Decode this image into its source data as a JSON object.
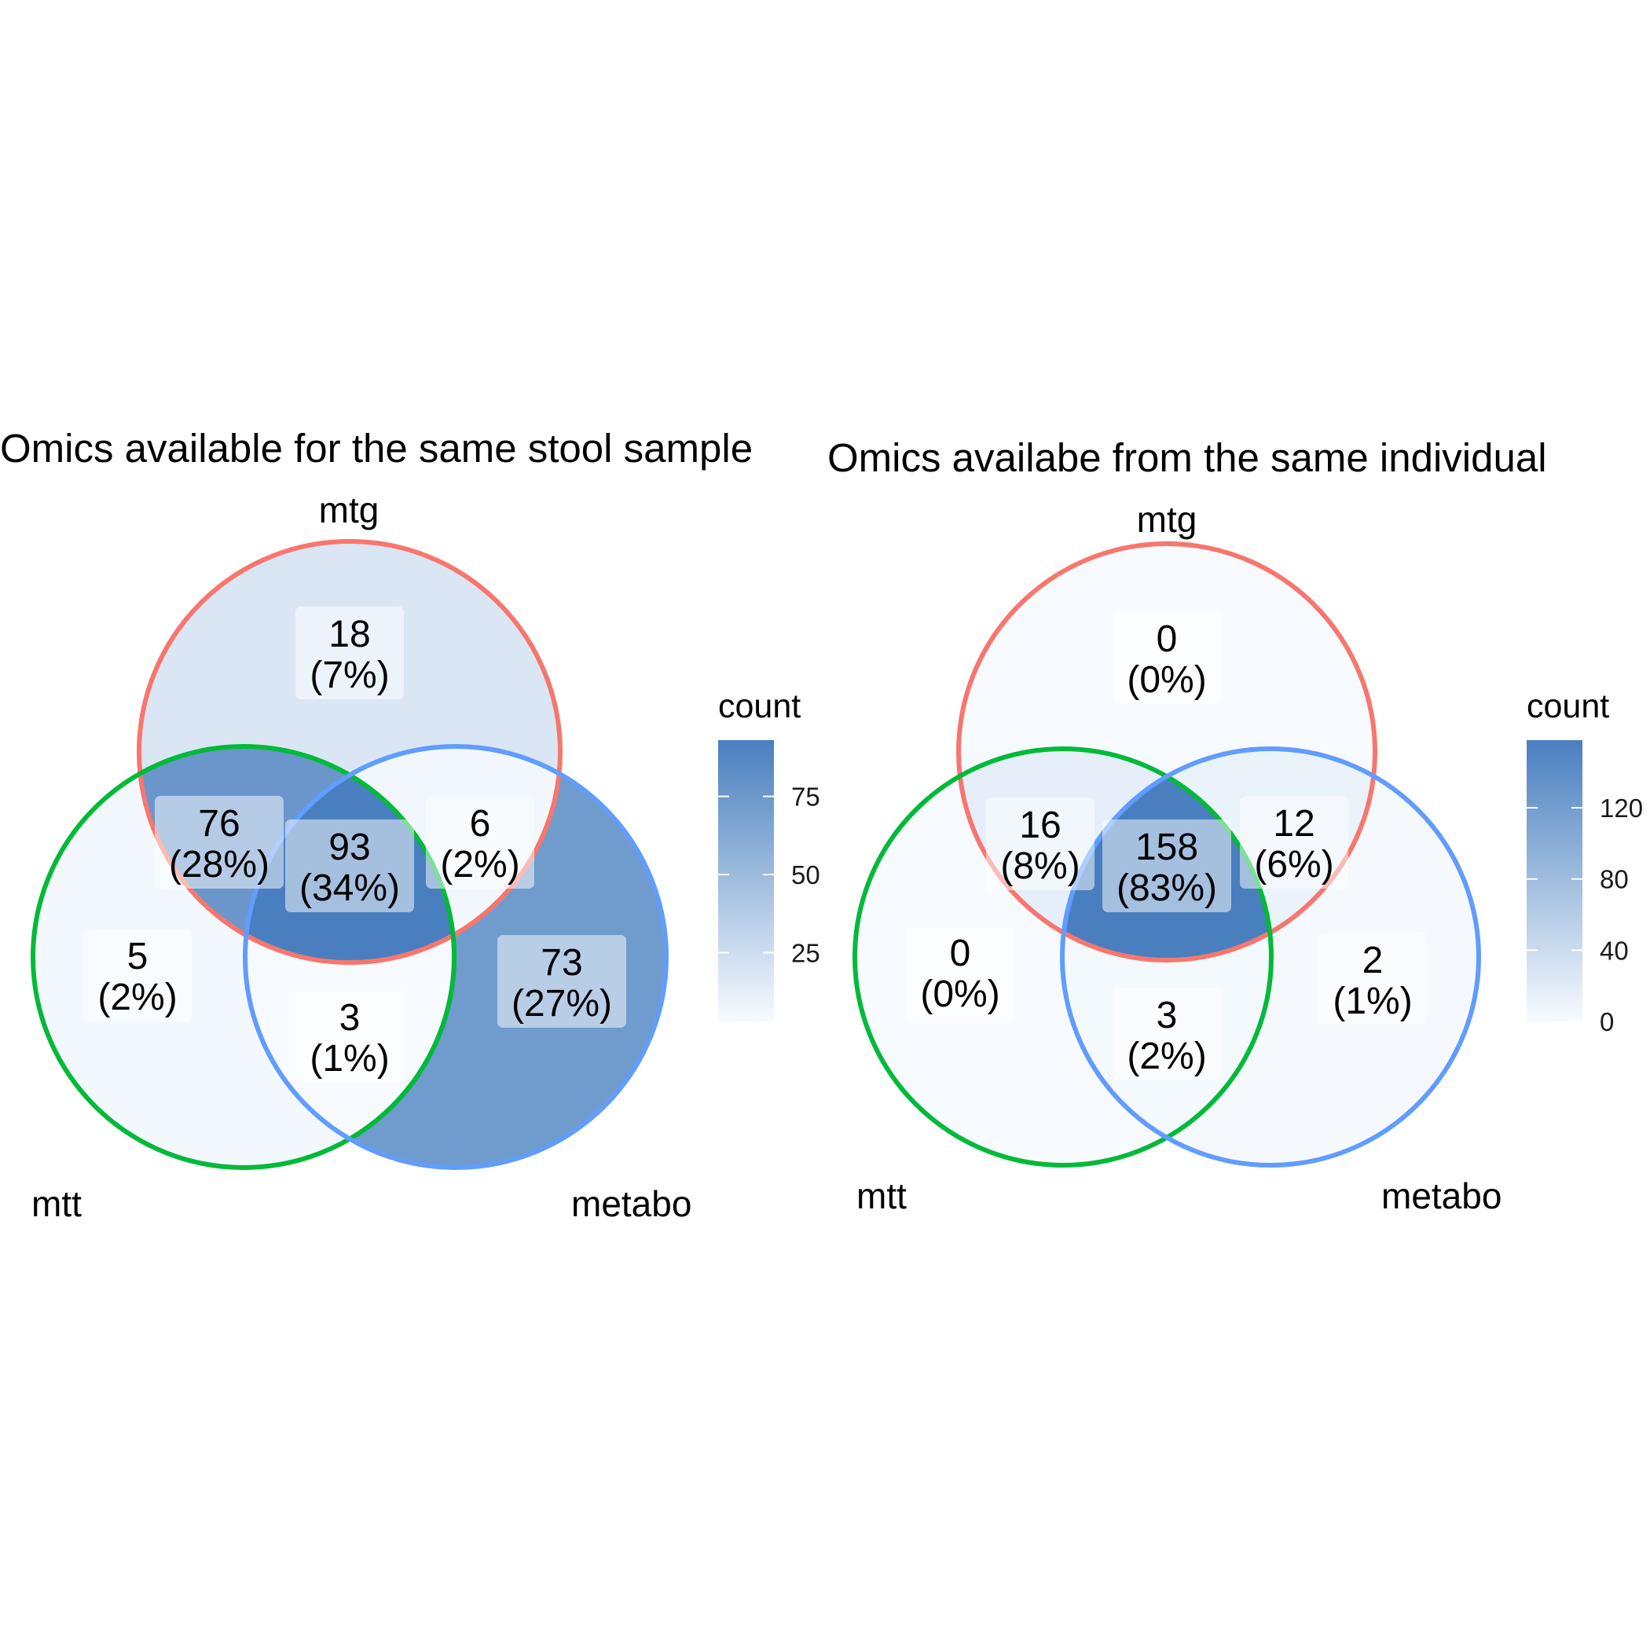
{
  "chart_data": [
    {
      "type": "venn",
      "title": "Omics available for the same stool sample",
      "sets": [
        "mtg",
        "mtt",
        "metabo"
      ],
      "set_colors": {
        "mtg": "#F8766D",
        "mtt": "#00BA38",
        "metabo": "#619CFF"
      },
      "regions": [
        {
          "sets": [
            "mtg"
          ],
          "count": "18",
          "percent": "(7%)"
        },
        {
          "sets": [
            "mtg",
            "mtt"
          ],
          "count": "76",
          "percent": "(28%)"
        },
        {
          "sets": [
            "mtg",
            "mtt",
            "metabo"
          ],
          "count": "93",
          "percent": "(34%)"
        },
        {
          "sets": [
            "mtg",
            "metabo"
          ],
          "count": "6",
          "percent": "(2%)"
        },
        {
          "sets": [
            "mtt"
          ],
          "count": "5",
          "percent": "(2%)"
        },
        {
          "sets": [
            "mtt",
            "metabo"
          ],
          "count": "3",
          "percent": "(1%)"
        },
        {
          "sets": [
            "metabo"
          ],
          "count": "73",
          "percent": "(27%)"
        }
      ],
      "legend": {
        "title": "count",
        "ticks": [
          "25",
          "50",
          "75"
        ],
        "tick_values": [
          25,
          50,
          75
        ],
        "range": [
          3,
          93
        ],
        "low_color": "#F7FBFF",
        "high_color": "#4A7FBF"
      }
    },
    {
      "type": "venn",
      "title": "Omics availabe from the same individual",
      "sets": [
        "mtg",
        "mtt",
        "metabo"
      ],
      "set_colors": {
        "mtg": "#F8766D",
        "mtt": "#00BA38",
        "metabo": "#619CFF"
      },
      "regions": [
        {
          "sets": [
            "mtg"
          ],
          "count": "0",
          "percent": "(0%)"
        },
        {
          "sets": [
            "mtg",
            "mtt"
          ],
          "count": "16",
          "percent": "(8%)"
        },
        {
          "sets": [
            "mtg",
            "mtt",
            "metabo"
          ],
          "count": "158",
          "percent": "(83%)"
        },
        {
          "sets": [
            "mtg",
            "metabo"
          ],
          "count": "12",
          "percent": "(6%)"
        },
        {
          "sets": [
            "mtt"
          ],
          "count": "0",
          "percent": "(0%)"
        },
        {
          "sets": [
            "mtt",
            "metabo"
          ],
          "count": "3",
          "percent": "(2%)"
        },
        {
          "sets": [
            "metabo"
          ],
          "count": "2",
          "percent": "(1%)"
        }
      ],
      "legend": {
        "title": "count",
        "ticks": [
          "0",
          "40",
          "80",
          "120"
        ],
        "tick_values": [
          0,
          40,
          80,
          120
        ],
        "range": [
          0,
          158
        ],
        "low_color": "#F7FBFF",
        "high_color": "#4A7FBF"
      }
    }
  ]
}
